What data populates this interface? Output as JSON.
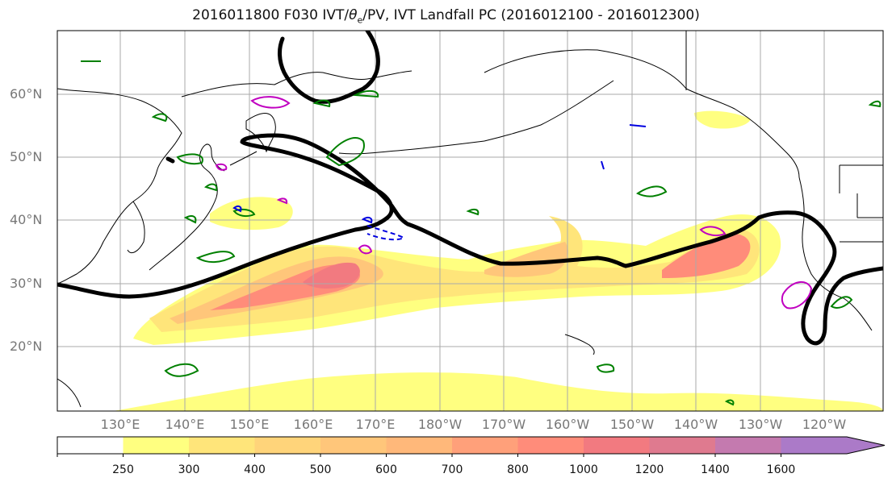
{
  "title": "2016011800 F030 IVT/θe/PV, IVT Landfall PC (2016012100 - 2016012300)",
  "title_prefix": "2016011800 F030 IVT/",
  "title_theta": "θ",
  "title_sub": "e",
  "title_suffix": "/PV, IVT Landfall PC (2016012100 - 2016012300)",
  "lat_labels": [
    "60°N",
    "50°N",
    "40°N",
    "30°N",
    "20°N"
  ],
  "lon_labels": [
    "130°E",
    "140°E",
    "150°E",
    "160°E",
    "170°E",
    "180°W",
    "170°W",
    "160°W",
    "150°W",
    "140°W",
    "130°W",
    "120°W"
  ],
  "colorbar": {
    "ticks": [
      "250",
      "300",
      "400",
      "500",
      "600",
      "700",
      "800",
      "1000",
      "1200",
      "1400",
      "1600"
    ],
    "colors": [
      "#ffff80",
      "#ffe57a",
      "#ffd47a",
      "#ffc67a",
      "#ffb87a",
      "#ffa07a",
      "#ff8c7a",
      "#f27a80",
      "#df7a8f",
      "#c47aaf",
      "#ab7ac8"
    ]
  },
  "legend_colors": {
    "ivt_low": "#ffff80",
    "ivt_high": "#f27a80",
    "pc_contour": "#000000",
    "theta_contour": "#008000",
    "pv_contour_positive": "#c000c0",
    "pv_contour_negative": "#0000e0"
  }
}
